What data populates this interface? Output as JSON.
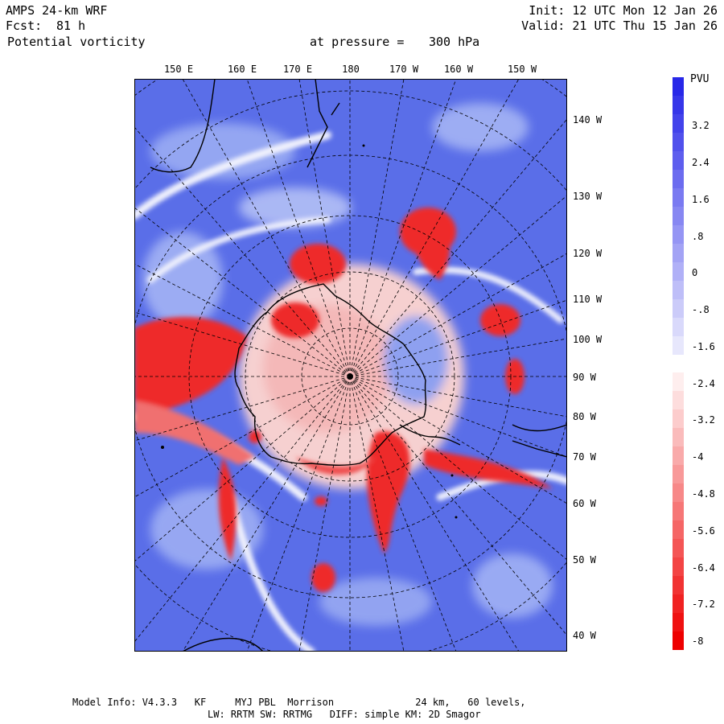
{
  "header": {
    "model": "AMPS 24-km WRF",
    "fcst_label": "Fcst:",
    "fcst_value": "81 h",
    "field": "Potential vorticity",
    "pressure_label": "at pressure =",
    "pressure_value": "300 hPa",
    "init": "Init: 12 UTC Mon 12 Jan 26",
    "valid": "Valid: 21 UTC Thu 15 Jan 26"
  },
  "map": {
    "top_longitudes": [
      "150 E",
      "160 E",
      "170 E",
      "180",
      "170 W",
      "160 W",
      "150 W"
    ],
    "right_longitudes": [
      "140 W",
      "130 W",
      "120 W",
      "110 W",
      "100 W",
      "90 W",
      "80 W",
      "70 W",
      "60 W",
      "50 W",
      "40 W"
    ],
    "colors": {
      "positive": "#4a5fe0",
      "negative": "#ee2020",
      "neutral": "#ffffff",
      "coast": "#000000"
    }
  },
  "colorbar": {
    "unit": "PVU",
    "labels": [
      "3.2",
      "2.4",
      "1.6",
      ".8",
      "0",
      "-.8",
      "-1.6",
      "-2.4",
      "-3.2",
      "-4",
      "-4.8",
      "-5.6",
      "-6.4",
      "-7.2",
      "-8"
    ],
    "top_color": "#2a2ae8",
    "bottom_color": "#ee0000"
  },
  "footer": {
    "line1": "Model Info: V4.3.3   KF     MYJ PBL  Morrison              24 km,   60 levels,",
    "line2": "LW: RRTM SW: RRTMG   DIFF: simple KM: 2D Smagor"
  }
}
